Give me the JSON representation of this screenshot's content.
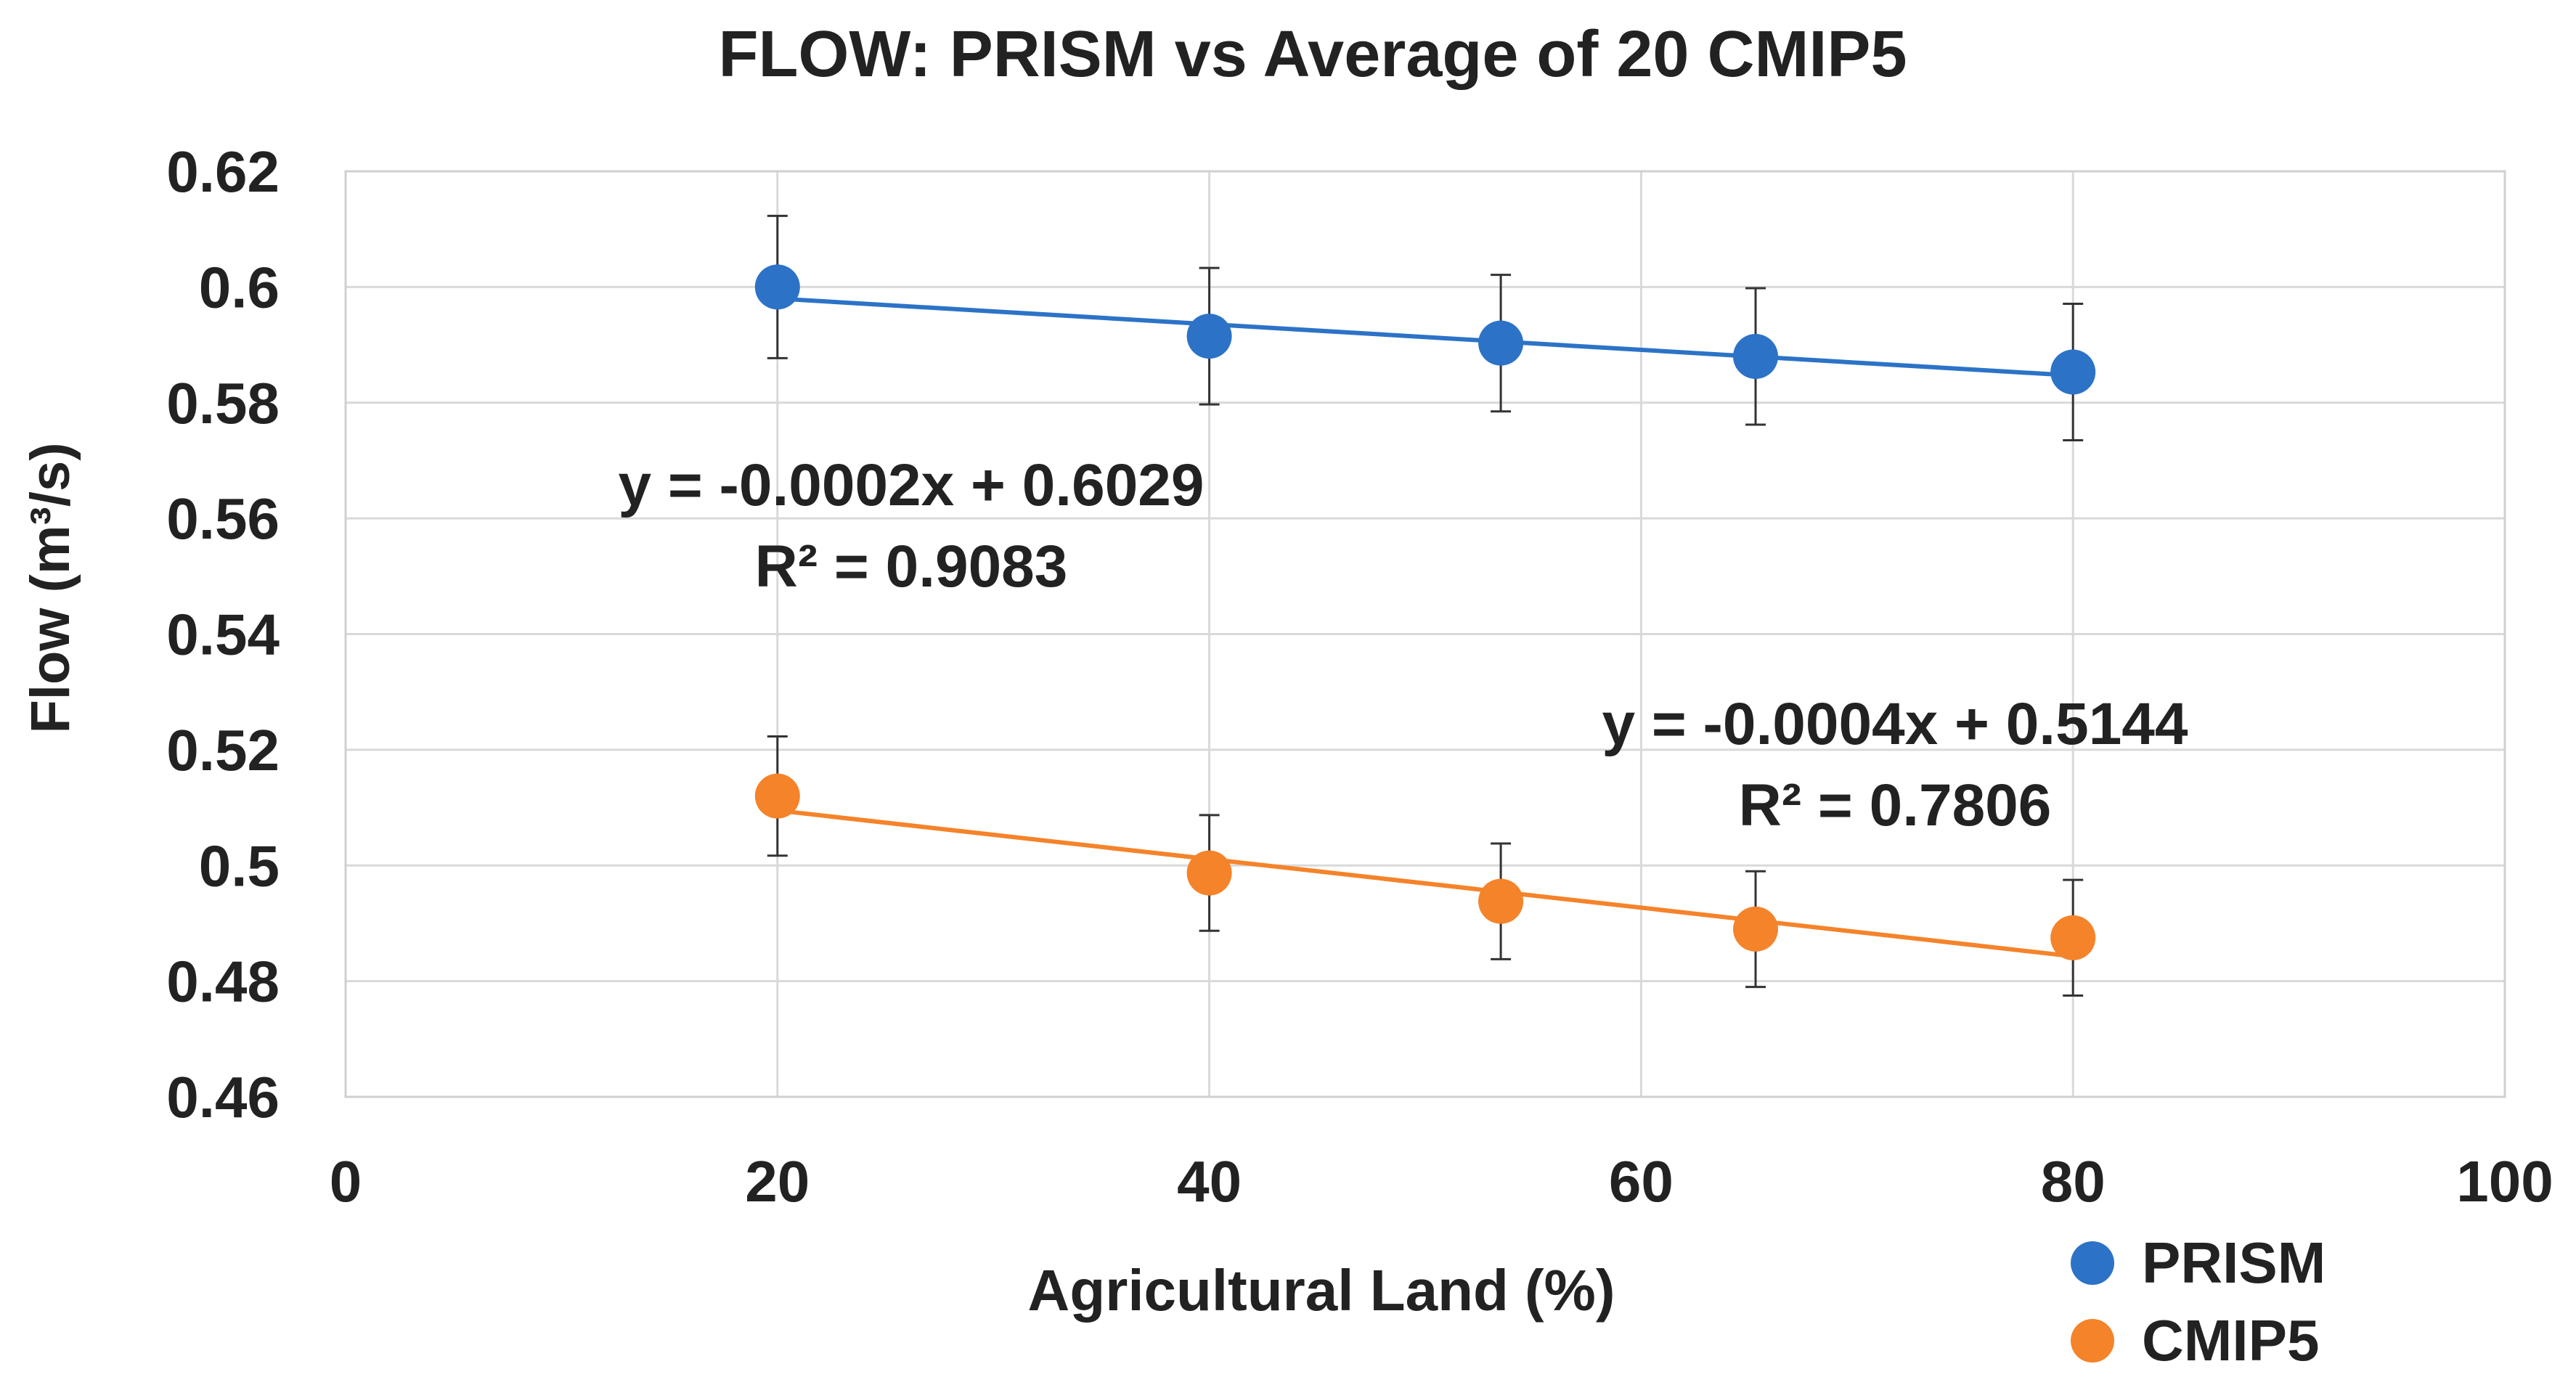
{
  "chart_data": {
    "type": "scatter",
    "title": "FLOW: PRISM vs Average of 20 CMIP5",
    "xlabel": "Agricultural Land (%)",
    "ylabel": "Flow (m³/s)",
    "xlim": [
      0,
      100
    ],
    "ylim": [
      0.46,
      0.62
    ],
    "x_ticks": [
      "0",
      "20",
      "40",
      "60",
      "80",
      "100"
    ],
    "y_ticks": [
      "0.46",
      "0.48",
      "0.5",
      "0.52",
      "0.54",
      "0.56",
      "0.58",
      "0.6",
      "0.62"
    ],
    "grid": true,
    "legend_position": "bottom-right",
    "series": [
      {
        "name": "PRISM",
        "color": "#2C73C7",
        "x": [
          20,
          40,
          53.5,
          65.3,
          80
        ],
        "y": [
          0.6,
          0.5915,
          0.5903,
          0.588,
          0.5853
        ],
        "error": [
          0.0123,
          0.0118,
          0.0118,
          0.0118,
          0.0118
        ],
        "trendline": {
          "slope": -0.0002,
          "intercept": 0.6029,
          "x_range": [
            20,
            80
          ],
          "y_range": [
            0.598,
            0.5847
          ]
        },
        "equation": "y = -0.0002x + 0.6029",
        "r2": "R² = 0.9083"
      },
      {
        "name": "CMIP5",
        "color": "#F5832A",
        "x": [
          20,
          40,
          53.5,
          65.3,
          80
        ],
        "y": [
          0.512,
          0.4987,
          0.4938,
          0.489,
          0.4875
        ],
        "error": [
          0.0103,
          0.01,
          0.01,
          0.01,
          0.01
        ],
        "trendline": {
          "slope": -0.0004,
          "intercept": 0.5144,
          "x_range": [
            20,
            80
          ],
          "y_range": [
            0.5095,
            0.4843
          ]
        },
        "equation": "y = -0.0004x + 0.5144",
        "r2": "R² = 0.7806"
      }
    ]
  }
}
